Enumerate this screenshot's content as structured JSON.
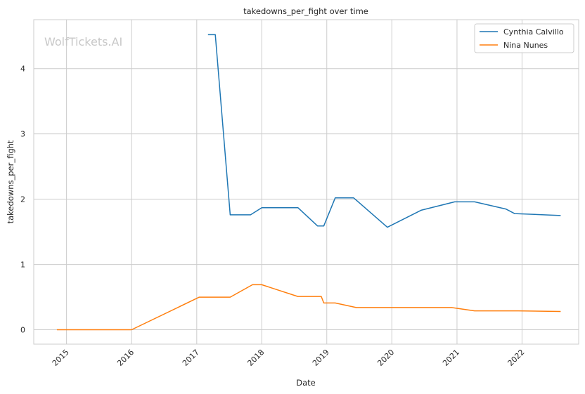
{
  "chart_data": {
    "type": "line",
    "title": "takedowns_per_fight over time",
    "xlabel": "Date",
    "ylabel": "takedowns_per_fight",
    "watermark": "WolfTickets.AI",
    "legend_position": "top-right",
    "grid": true,
    "xlim": [
      "2014-07-01",
      "2022-11-15"
    ],
    "ylim": [
      -0.22,
      4.75
    ],
    "x_ticks": [
      "2015",
      "2016",
      "2017",
      "2018",
      "2019",
      "2020",
      "2021",
      "2022"
    ],
    "y_ticks": [
      "0",
      "1",
      "2",
      "3",
      "4"
    ],
    "series": [
      {
        "name": "Cynthia Calvillo",
        "color": "#1f77b4",
        "points": [
          [
            "2017-03-05",
            4.52
          ],
          [
            "2017-04-15",
            4.52
          ],
          [
            "2017-07-08",
            1.76
          ],
          [
            "2017-10-30",
            1.76
          ],
          [
            "2018-01-01",
            1.87
          ],
          [
            "2018-07-23",
            1.87
          ],
          [
            "2018-11-10",
            1.59
          ],
          [
            "2018-12-15",
            1.59
          ],
          [
            "2019-02-17",
            2.02
          ],
          [
            "2019-06-01",
            2.02
          ],
          [
            "2019-12-07",
            1.57
          ],
          [
            "2020-06-13",
            1.83
          ],
          [
            "2020-12-19",
            1.96
          ],
          [
            "2021-04-10",
            1.96
          ],
          [
            "2021-10-02",
            1.85
          ],
          [
            "2021-11-20",
            1.78
          ],
          [
            "2022-08-06",
            1.75
          ]
        ]
      },
      {
        "name": "Nina Nunes",
        "color": "#ff7f0e",
        "points": [
          [
            "2014-11-08",
            0.0
          ],
          [
            "2016-01-01",
            0.0
          ],
          [
            "2017-01-15",
            0.5
          ],
          [
            "2017-07-08",
            0.5
          ],
          [
            "2017-11-10",
            0.69
          ],
          [
            "2018-01-01",
            0.69
          ],
          [
            "2018-07-22",
            0.51
          ],
          [
            "2018-12-01",
            0.51
          ],
          [
            "2018-12-15",
            0.41
          ],
          [
            "2019-02-17",
            0.41
          ],
          [
            "2019-06-15",
            0.34
          ],
          [
            "2020-12-01",
            0.34
          ],
          [
            "2021-04-10",
            0.29
          ],
          [
            "2021-12-11",
            0.29
          ],
          [
            "2022-08-06",
            0.28
          ]
        ]
      }
    ]
  }
}
